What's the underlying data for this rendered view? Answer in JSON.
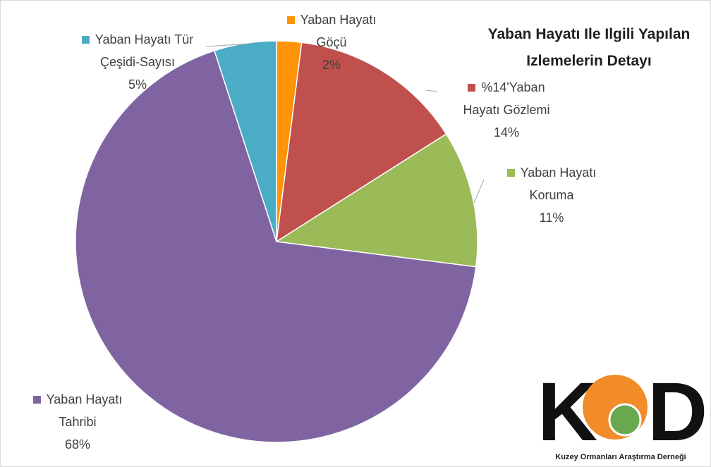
{
  "chart_data": {
    "type": "pie",
    "title": "Yaban Hayatı Ile Ilgili Yapılan Izlemelerin Detayı",
    "categories": [
      "Yaban Hayatı Göçü",
      "%14'Yaban Hayatı Gözlemi",
      "Yaban Hayatı Koruma",
      "Yaban Hayatı Tahribi",
      "Yaban Hayatı Tür Çeşidi-Sayısı"
    ],
    "values": [
      2,
      14,
      11,
      68,
      5
    ],
    "value_labels": [
      "2%",
      "14%",
      "11%",
      "68%",
      "5%"
    ],
    "colors": [
      "#ff9408",
      "#c0504d",
      "#9bbb59",
      "#8064a2",
      "#4bacc6"
    ]
  },
  "logo": {
    "mark_left": "K",
    "mark_right": "D",
    "name": "Kuzey Ormanları Araştırma Derneği"
  }
}
